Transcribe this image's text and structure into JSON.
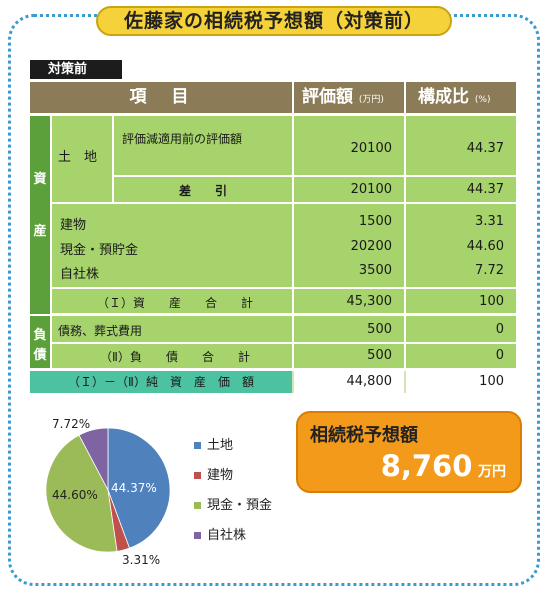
{
  "title": "佐藤家の相続税予想額（対策前）",
  "tag": "対策前",
  "header": {
    "item": "項　目",
    "value": "評価額",
    "value_unit": "(万円)",
    "ratio": "構成比",
    "ratio_unit": "(%)"
  },
  "assets_label_1": "資",
  "assets_label_2": "産",
  "land_label": "土　地",
  "land_row": {
    "label": "評価減適用前の評価額",
    "value": "20100",
    "ratio": "44.37"
  },
  "land_net": {
    "label": "差　　引",
    "value": "20100",
    "ratio": "44.37"
  },
  "other_assets": [
    {
      "label": "建物",
      "value": "1500",
      "ratio": "3.31"
    },
    {
      "label": "現金・預貯金",
      "value": "20200",
      "ratio": "44.60"
    },
    {
      "label": "自社株",
      "value": "3500",
      "ratio": "7.72"
    }
  ],
  "assets_total": {
    "label": "（Ｉ）資　　産　　合　　計",
    "value": "45,300",
    "ratio": "100"
  },
  "liab_label_1": "負",
  "liab_label_2": "債",
  "liab_row": {
    "label": "債務、葬式費用",
    "value": "500",
    "ratio": "0"
  },
  "liab_total": {
    "label": "（Ⅱ）負　　債　　合　　計",
    "value": "500",
    "ratio": "0"
  },
  "net_total": {
    "label": "（Ｉ）－（Ⅱ）純　資　産　価　額",
    "value": "44,800",
    "ratio": "100"
  },
  "chart_data": {
    "type": "pie",
    "categories": [
      "土地",
      "建物",
      "現金・預金",
      "自社株"
    ],
    "values": [
      44.37,
      3.31,
      44.6,
      7.72
    ],
    "labels": [
      "44.37%",
      "3.31%",
      "44.60%",
      "7.72%"
    ],
    "colors": [
      "#4f81bd",
      "#c0504d",
      "#9bbb59",
      "#8064a2"
    ],
    "legend_position": "right"
  },
  "tax": {
    "label": "相続税予想額",
    "value": "8,760",
    "unit": "万円"
  }
}
